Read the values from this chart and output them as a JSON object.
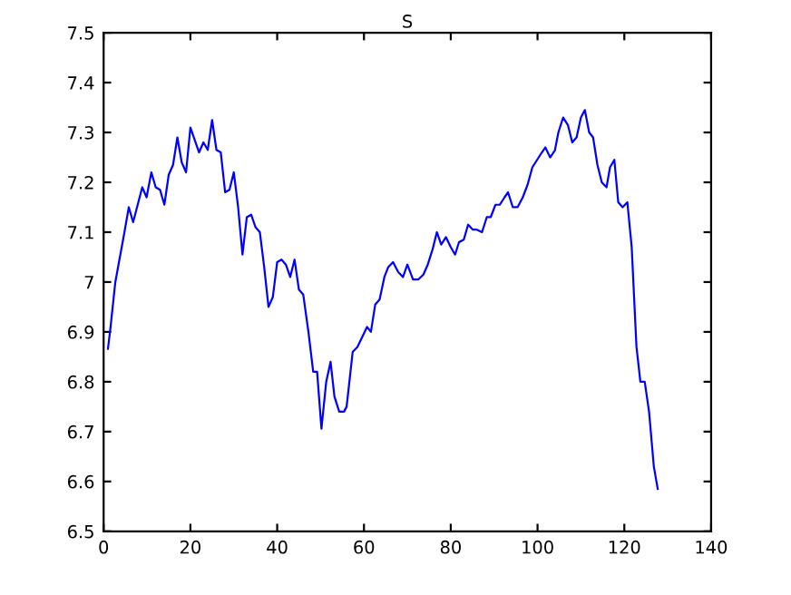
{
  "chart_data": {
    "type": "line",
    "title": "S",
    "series": [
      {
        "color": "#0000ff",
        "x": [
          1,
          1.6,
          2.7,
          4.8,
          5.8,
          6.8,
          8.9,
          9.9,
          11,
          12,
          13,
          14,
          15,
          16,
          17,
          18,
          19,
          20,
          21,
          22,
          23,
          24,
          25,
          26,
          27,
          28,
          29,
          30,
          31,
          32,
          33,
          34,
          35,
          36,
          37,
          38,
          39,
          40,
          41,
          42,
          43,
          44,
          45,
          46,
          47.2,
          48.3,
          49.2,
          50.2,
          51.3,
          52.3,
          53.2,
          54.3,
          55.4,
          56,
          57.4,
          58.5,
          59.6,
          60.7,
          61.6,
          62.6,
          63.6,
          64.7,
          65.6,
          66.7,
          67.9,
          69,
          70,
          71.3,
          72.5,
          73.7,
          74.7,
          75.8,
          76.8,
          77.8,
          78.9,
          80,
          81,
          81.9,
          83,
          84,
          85.1,
          86,
          87.2,
          88.3,
          89.2,
          90.3,
          91.3,
          92.4,
          93.2,
          94.3,
          95.4,
          96.6,
          97.7,
          98.8,
          99.9,
          101,
          101.8,
          102.9,
          104,
          104.8,
          105.9,
          107,
          108,
          109,
          110,
          110.9,
          111.9,
          112.8,
          113.8,
          114.8,
          115.9,
          116.7,
          117.7,
          118.6,
          119.6,
          120.7,
          121.7,
          122.8,
          123.7,
          124.7,
          125.7,
          126.8,
          127.7
        ],
        "values": [
          6.866,
          6.91,
          7.0,
          7.1,
          7.15,
          7.12,
          7.19,
          7.17,
          7.22,
          7.19,
          7.185,
          7.155,
          7.215,
          7.235,
          7.29,
          7.24,
          7.22,
          7.31,
          7.285,
          7.26,
          7.28,
          7.265,
          7.325,
          7.265,
          7.26,
          7.18,
          7.185,
          7.22,
          7.15,
          7.055,
          7.13,
          7.135,
          7.11,
          7.1,
          7.03,
          6.95,
          6.97,
          7.04,
          7.045,
          7.035,
          7.01,
          7.045,
          6.985,
          6.975,
          6.9,
          6.82,
          6.82,
          6.706,
          6.8,
          6.84,
          6.77,
          6.74,
          6.74,
          6.75,
          6.86,
          6.87,
          6.89,
          6.91,
          6.9,
          6.955,
          6.965,
          7.01,
          7.03,
          7.04,
          7.02,
          7.01,
          7.035,
          7.005,
          7.005,
          7.015,
          7.035,
          7.065,
          7.1,
          7.075,
          7.09,
          7.07,
          7.055,
          7.08,
          7.085,
          7.115,
          7.105,
          7.105,
          7.1,
          7.13,
          7.13,
          7.155,
          7.155,
          7.17,
          7.18,
          7.15,
          7.15,
          7.17,
          7.195,
          7.23,
          7.245,
          7.26,
          7.27,
          7.25,
          7.264,
          7.3,
          7.33,
          7.315,
          7.28,
          7.29,
          7.33,
          7.345,
          7.3,
          7.29,
          7.235,
          7.2,
          7.19,
          7.23,
          7.245,
          7.16,
          7.15,
          7.16,
          7.07,
          6.87,
          6.8,
          6.8,
          6.74,
          6.63,
          6.585
        ]
      }
    ],
    "xlim": [
      0,
      140
    ],
    "xticks": [
      0,
      20,
      40,
      60,
      80,
      100,
      120,
      140
    ],
    "ylim": [
      6.5,
      7.5
    ],
    "yticks": [
      6.5,
      6.6,
      6.7,
      6.8,
      6.9,
      7,
      7.1,
      7.2,
      7.3,
      7.4,
      7.5
    ],
    "grid": false,
    "legend": false
  }
}
